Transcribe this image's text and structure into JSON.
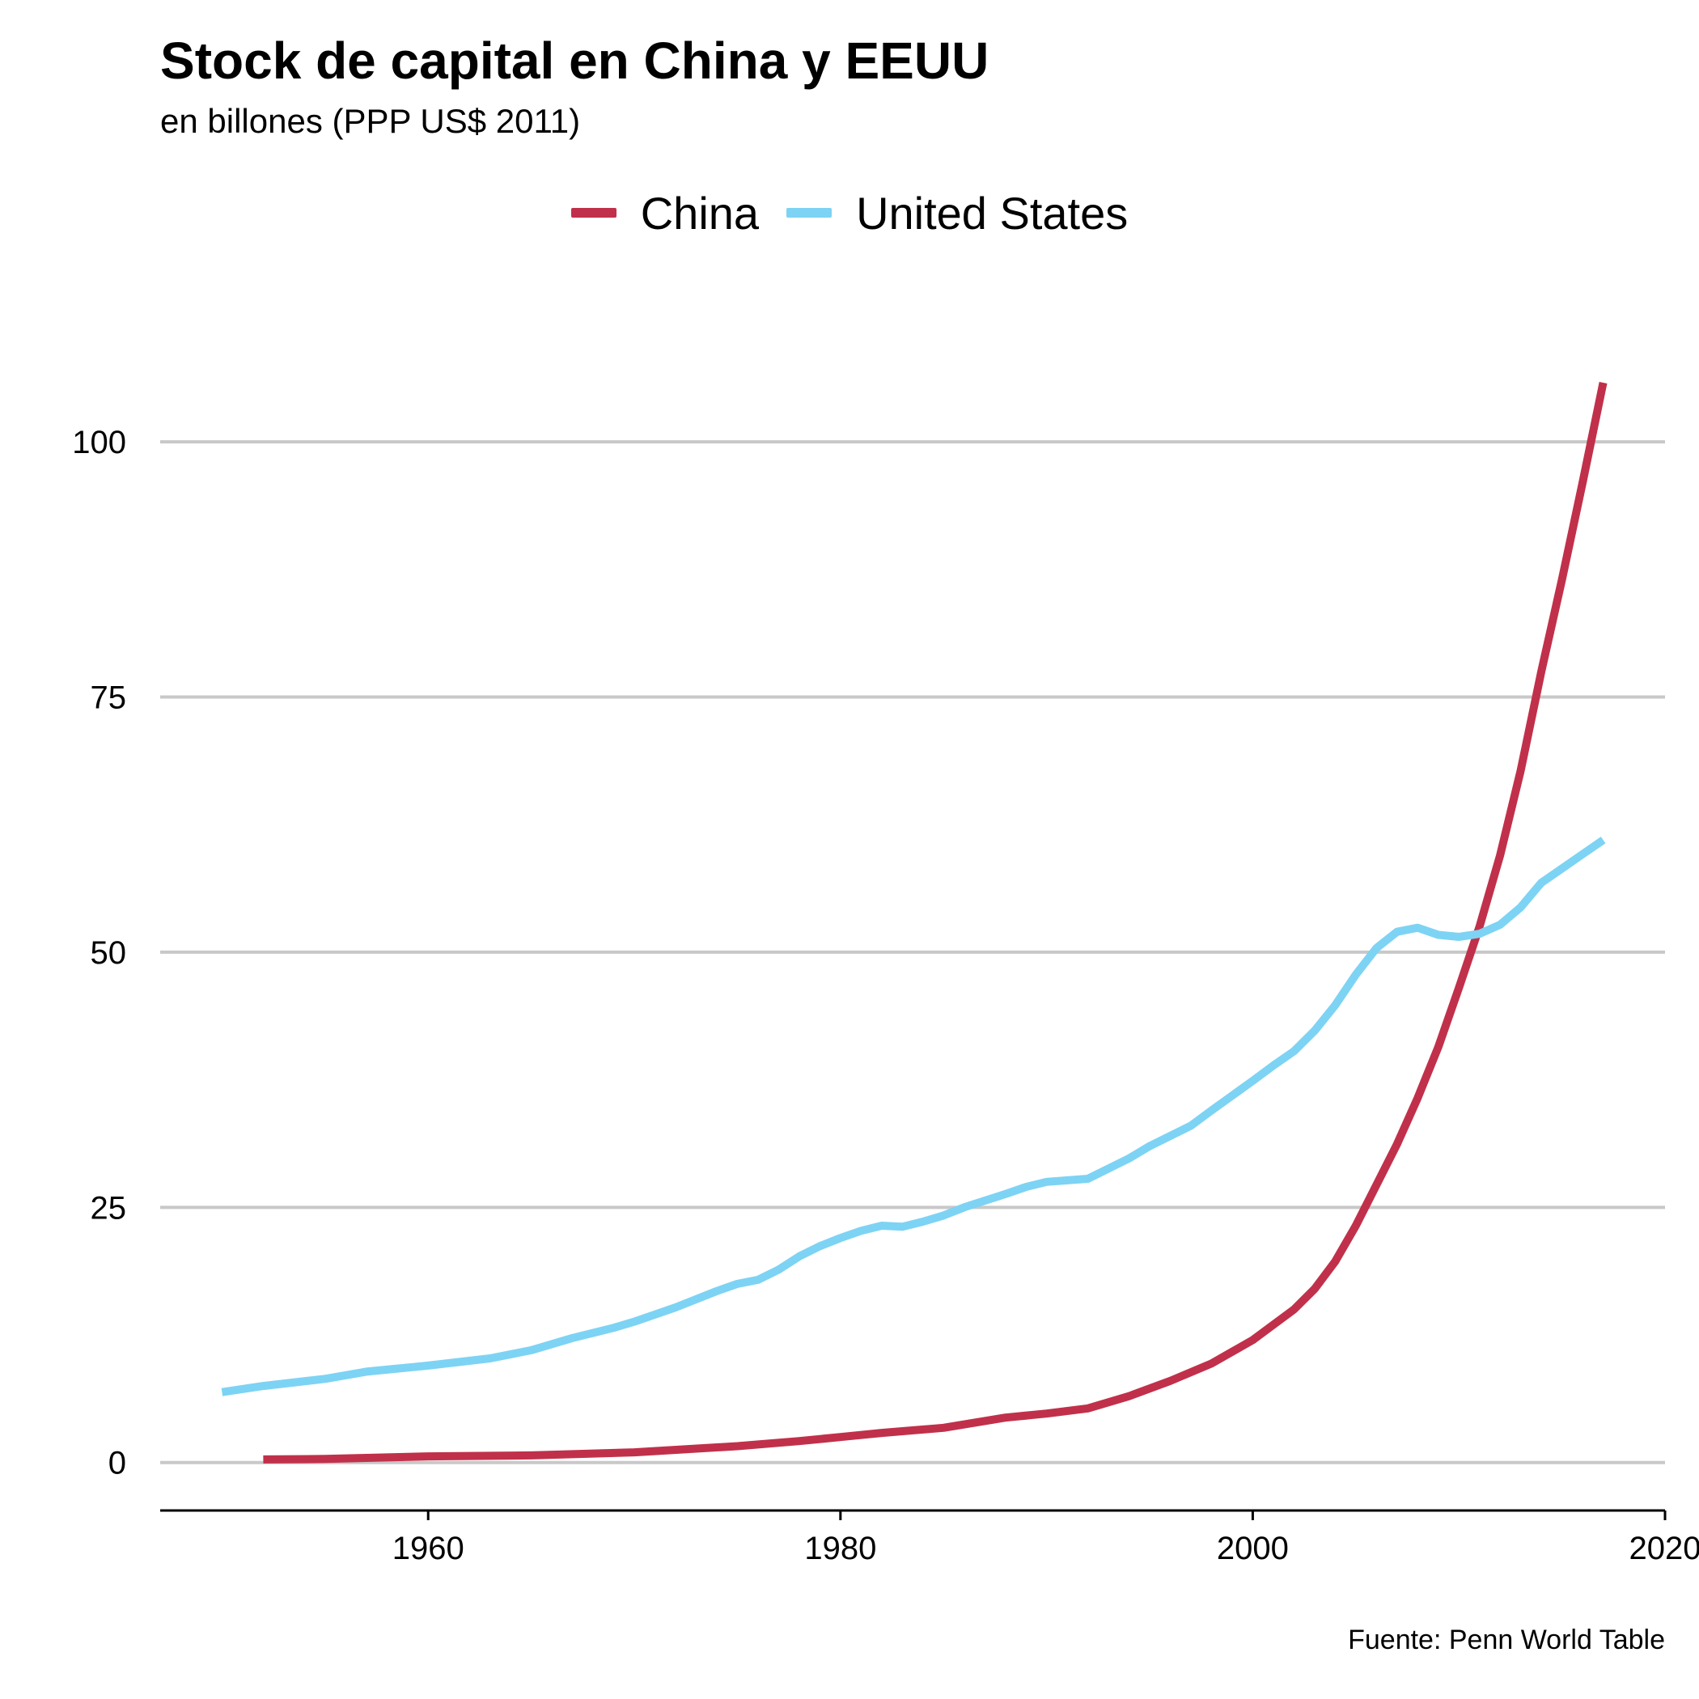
{
  "chart_data": {
    "type": "line",
    "title": "Stock de capital en China y EEUU",
    "subtitle": "en billones (PPP US$ 2011)",
    "caption": "Fuente: Penn World Table",
    "xlabel": "",
    "ylabel": "",
    "xlim": [
      1947,
      2020
    ],
    "ylim": [
      -4.7,
      110
    ],
    "xticks": [
      1960,
      1980,
      2000,
      2020
    ],
    "yticks": [
      0,
      25,
      50,
      75,
      100
    ],
    "grid": "horizontal",
    "legend_position": "top",
    "series": [
      {
        "name": "China",
        "color": "#C1304A",
        "x": [
          1952,
          1955,
          1958,
          1960,
          1965,
          1970,
          1975,
          1978,
          1980,
          1982,
          1985,
          1988,
          1990,
          1992,
          1994,
          1996,
          1998,
          2000,
          2002,
          2003,
          2004,
          2005,
          2006,
          2007,
          2008,
          2009,
          2010,
          2011,
          2012,
          2013,
          2014,
          2015,
          2016,
          2017
        ],
        "values": [
          0.3,
          0.35,
          0.5,
          0.6,
          0.7,
          1.0,
          1.6,
          2.1,
          2.5,
          2.9,
          3.4,
          4.4,
          4.8,
          5.3,
          6.5,
          8.0,
          9.7,
          12.0,
          15.0,
          17.0,
          19.7,
          23.2,
          27.2,
          31.2,
          35.7,
          40.7,
          46.5,
          52.5,
          59.5,
          67.8,
          77.5,
          86.5,
          96.0,
          105.8
        ]
      },
      {
        "name": "United States",
        "color": "#7DD3F4",
        "x": [
          1950,
          1952,
          1955,
          1957,
          1958,
          1960,
          1963,
          1965,
          1967,
          1969,
          1970,
          1972,
          1974,
          1975,
          1976,
          1977,
          1978,
          1979,
          1980,
          1981,
          1982,
          1983,
          1984,
          1985,
          1986,
          1988,
          1989,
          1990,
          1992,
          1994,
          1995,
          1996,
          1997,
          1998,
          2000,
          2001,
          2002,
          2003,
          2004,
          2005,
          2006,
          2007,
          2008,
          2009,
          2010,
          2011,
          2012,
          2013,
          2014,
          2015,
          2016,
          2017
        ],
        "values": [
          6.9,
          7.5,
          8.2,
          8.9,
          9.1,
          9.5,
          10.2,
          11.0,
          12.2,
          13.2,
          13.8,
          15.2,
          16.8,
          17.5,
          17.9,
          18.9,
          20.2,
          21.2,
          22.0,
          22.7,
          23.2,
          23.1,
          23.6,
          24.2,
          25.0,
          26.3,
          27.0,
          27.5,
          27.8,
          29.8,
          31.0,
          32.0,
          33.0,
          34.5,
          37.4,
          38.9,
          40.3,
          42.3,
          44.8,
          47.8,
          50.4,
          52.0,
          52.4,
          51.7,
          51.5,
          51.8,
          52.7,
          54.4,
          56.8,
          58.2,
          59.6,
          61.0
        ]
      }
    ]
  }
}
